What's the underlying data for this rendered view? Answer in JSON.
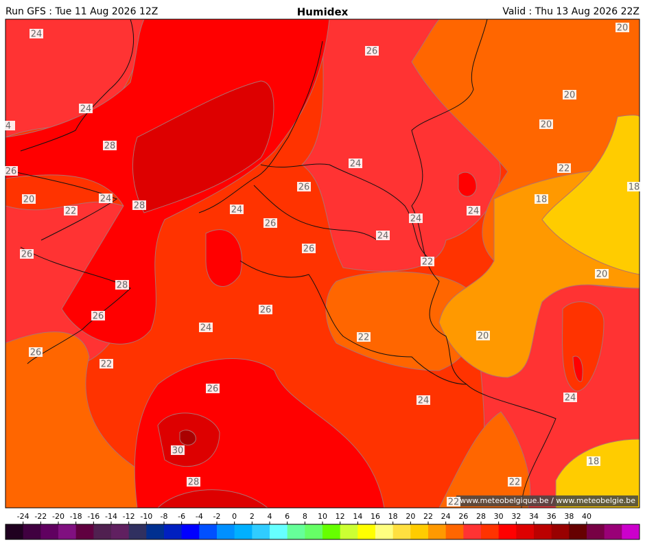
{
  "header": {
    "run": "Run GFS : Tue 11 Aug 2026 12Z",
    "title": "Humidex",
    "valid": "Valid : Thu 13 Aug 2026 22Z"
  },
  "contour_labels": [
    24,
    26,
    20,
    24,
    20,
    4,
    20,
    28,
    24,
    22,
    26,
    26,
    18,
    20,
    24,
    28,
    18,
    24,
    22,
    26,
    24,
    24,
    24,
    26,
    26,
    22,
    20,
    28,
    26,
    26,
    24,
    22,
    20,
    26,
    22,
    26,
    24,
    24,
    30,
    18,
    28,
    22,
    22
  ],
  "colorbar": {
    "ticks": [
      -24,
      -22,
      -20,
      -18,
      -16,
      -14,
      -12,
      -10,
      -8,
      -6,
      -4,
      -2,
      0,
      2,
      4,
      6,
      8,
      10,
      12,
      14,
      16,
      18,
      20,
      22,
      24,
      26,
      28,
      30,
      32,
      34,
      36,
      38,
      40
    ],
    "colors": [
      "#200020",
      "#400040",
      "#600060",
      "#801080",
      "#600040",
      "#502050",
      "#602060",
      "#303060",
      "#003090",
      "#0020c0",
      "#0000ff",
      "#0050ff",
      "#0090ff",
      "#00b0ff",
      "#30ccff",
      "#66ffff",
      "#66ff99",
      "#66ff66",
      "#66ff00",
      "#ccff33",
      "#ffff00",
      "#ffff80",
      "#ffe040",
      "#ffcc00",
      "#ff9900",
      "#ff6600",
      "#ff3333",
      "#ff3300",
      "#ff0000",
      "#dd0000",
      "#bb0000",
      "#990000",
      "#660000",
      "#770044",
      "#990077",
      "#cc00cc"
    ]
  },
  "attribution": "© www.meteobelgique.be / www.meteobelgie.be"
}
